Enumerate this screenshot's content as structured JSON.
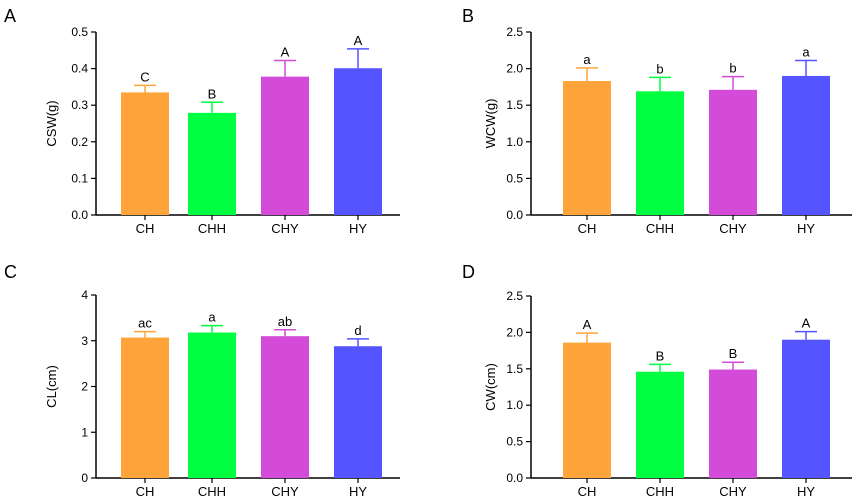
{
  "chart_data": [
    {
      "panel": "A",
      "type": "bar",
      "ylabel": "CSW(g)",
      "ylim": [
        0,
        0.5
      ],
      "yticks": [
        "0.0",
        "0.1",
        "0.2",
        "0.3",
        "0.4",
        "0.5"
      ],
      "categories": [
        "CH",
        "CHH",
        "CHY",
        "HY"
      ],
      "values": [
        0.335,
        0.279,
        0.378,
        0.401
      ],
      "errors": [
        0.019,
        0.029,
        0.044,
        0.053
      ],
      "significance": [
        "C",
        "B",
        "A",
        "A"
      ],
      "colors": [
        "#FFA43A",
        "#00FF40",
        "#D44BDA",
        "#5555FF"
      ]
    },
    {
      "panel": "B",
      "type": "bar",
      "ylabel": "WCW(g)",
      "ylim": [
        0,
        2.5
      ],
      "yticks": [
        "0.0",
        "0.5",
        "1.0",
        "1.5",
        "2.0",
        "2.5"
      ],
      "categories": [
        "CH",
        "CHH",
        "CHY",
        "HY"
      ],
      "values": [
        1.83,
        1.69,
        1.71,
        1.9
      ],
      "errors": [
        0.18,
        0.19,
        0.18,
        0.21
      ],
      "significance": [
        "a",
        "b",
        "b",
        "a"
      ],
      "colors": [
        "#FFA43A",
        "#00FF40",
        "#D44BDA",
        "#5555FF"
      ]
    },
    {
      "panel": "C",
      "type": "bar",
      "ylabel": "CL(cm)",
      "ylim": [
        0,
        4
      ],
      "yticks": [
        "0",
        "1",
        "2",
        "3",
        "4"
      ],
      "categories": [
        "CH",
        "CHH",
        "CHY",
        "HY"
      ],
      "values": [
        3.07,
        3.18,
        3.1,
        2.88
      ],
      "errors": [
        0.13,
        0.15,
        0.14,
        0.16
      ],
      "significance": [
        "ac",
        "a",
        "ab",
        "d"
      ],
      "colors": [
        "#FFA43A",
        "#00FF40",
        "#D44BDA",
        "#5555FF"
      ]
    },
    {
      "panel": "D",
      "type": "bar",
      "ylabel": "CW(cm)",
      "ylim": [
        0,
        2.5
      ],
      "yticks": [
        "0.0",
        "0.5",
        "1.0",
        "1.5",
        "2.0",
        "2.5"
      ],
      "categories": [
        "CH",
        "CHH",
        "CHY",
        "HY"
      ],
      "values": [
        1.86,
        1.46,
        1.49,
        1.9
      ],
      "errors": [
        0.13,
        0.1,
        0.1,
        0.11
      ],
      "significance": [
        "A",
        "B",
        "B",
        "A"
      ],
      "colors": [
        "#FFA43A",
        "#00FF40",
        "#D44BDA",
        "#5555FF"
      ]
    }
  ]
}
